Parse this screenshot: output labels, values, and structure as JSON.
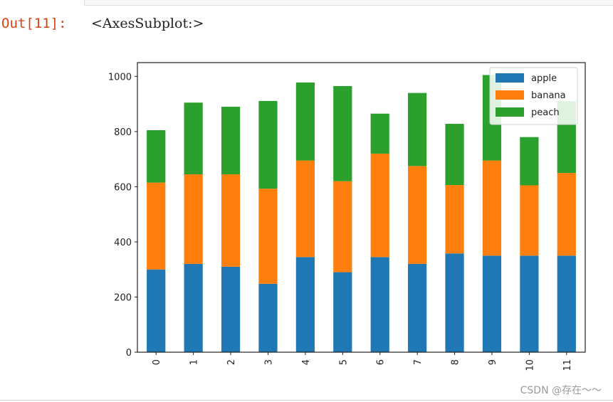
{
  "cell": {
    "prompt": "Out[11]:",
    "output_text": "<AxesSubplot:>"
  },
  "chart_data": {
    "type": "bar",
    "stacked": true,
    "categories": [
      "0",
      "1",
      "2",
      "3",
      "4",
      "5",
      "6",
      "7",
      "8",
      "9",
      "10",
      "11"
    ],
    "series": [
      {
        "name": "apple",
        "color": "#1f77b4",
        "values": [
          300,
          320,
          310,
          248,
          345,
          290,
          345,
          320,
          358,
          350,
          350,
          350
        ]
      },
      {
        "name": "banana",
        "color": "#ff7f0e",
        "values": [
          315,
          325,
          335,
          345,
          350,
          330,
          375,
          355,
          248,
          345,
          255,
          300
        ]
      },
      {
        "name": "peach",
        "color": "#2ca02c",
        "values": [
          190,
          260,
          245,
          318,
          283,
          345,
          145,
          265,
          222,
          310,
          175,
          260
        ]
      }
    ],
    "ylim": [
      0,
      1050
    ],
    "yticks": [
      0,
      200,
      400,
      600,
      800,
      1000
    ],
    "xlabel": "",
    "ylabel": "",
    "title": "",
    "grid": false,
    "legend_position": "top-right",
    "xtick_rotation": "vertical"
  },
  "watermark": "CSDN @存在～～"
}
